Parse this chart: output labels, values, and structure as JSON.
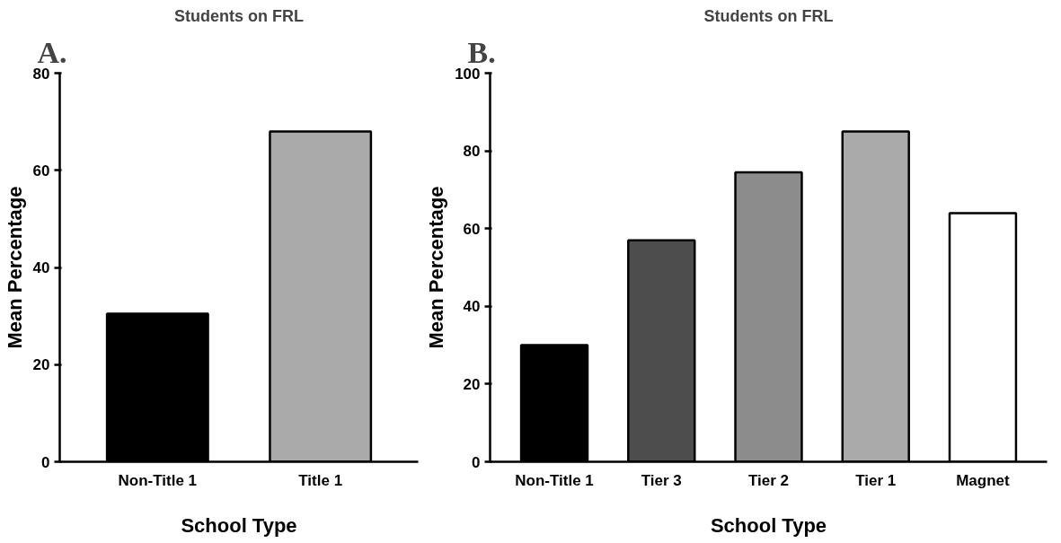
{
  "chart_data": [
    {
      "type": "bar",
      "title": "Students on FRL",
      "xlabel": "School Type",
      "ylabel": "Mean Percentage",
      "annotations": [
        "A."
      ],
      "categories": [
        "Non-Title 1",
        "Title 1"
      ],
      "values": [
        30.5,
        68
      ],
      "colors": [
        "#000000",
        "#aaaaaa"
      ],
      "ylim": [
        0,
        80
      ],
      "yticks": [
        0,
        20,
        40,
        60,
        80
      ]
    },
    {
      "type": "bar",
      "title": "Students on FRL",
      "xlabel": "School Type",
      "ylabel": "Mean Percentage",
      "annotations": [
        "B."
      ],
      "categories": [
        "Non-Title 1",
        "Tier 3",
        "Tier 2",
        "Tier 1",
        "Magnet"
      ],
      "values": [
        30,
        57,
        74.5,
        85,
        64
      ],
      "colors": [
        "#000000",
        "#4d4d4d",
        "#8c8c8c",
        "#aaaaaa",
        "#ffffff"
      ],
      "ylim": [
        0,
        100
      ],
      "yticks": [
        0,
        20,
        40,
        60,
        80,
        100
      ]
    }
  ]
}
